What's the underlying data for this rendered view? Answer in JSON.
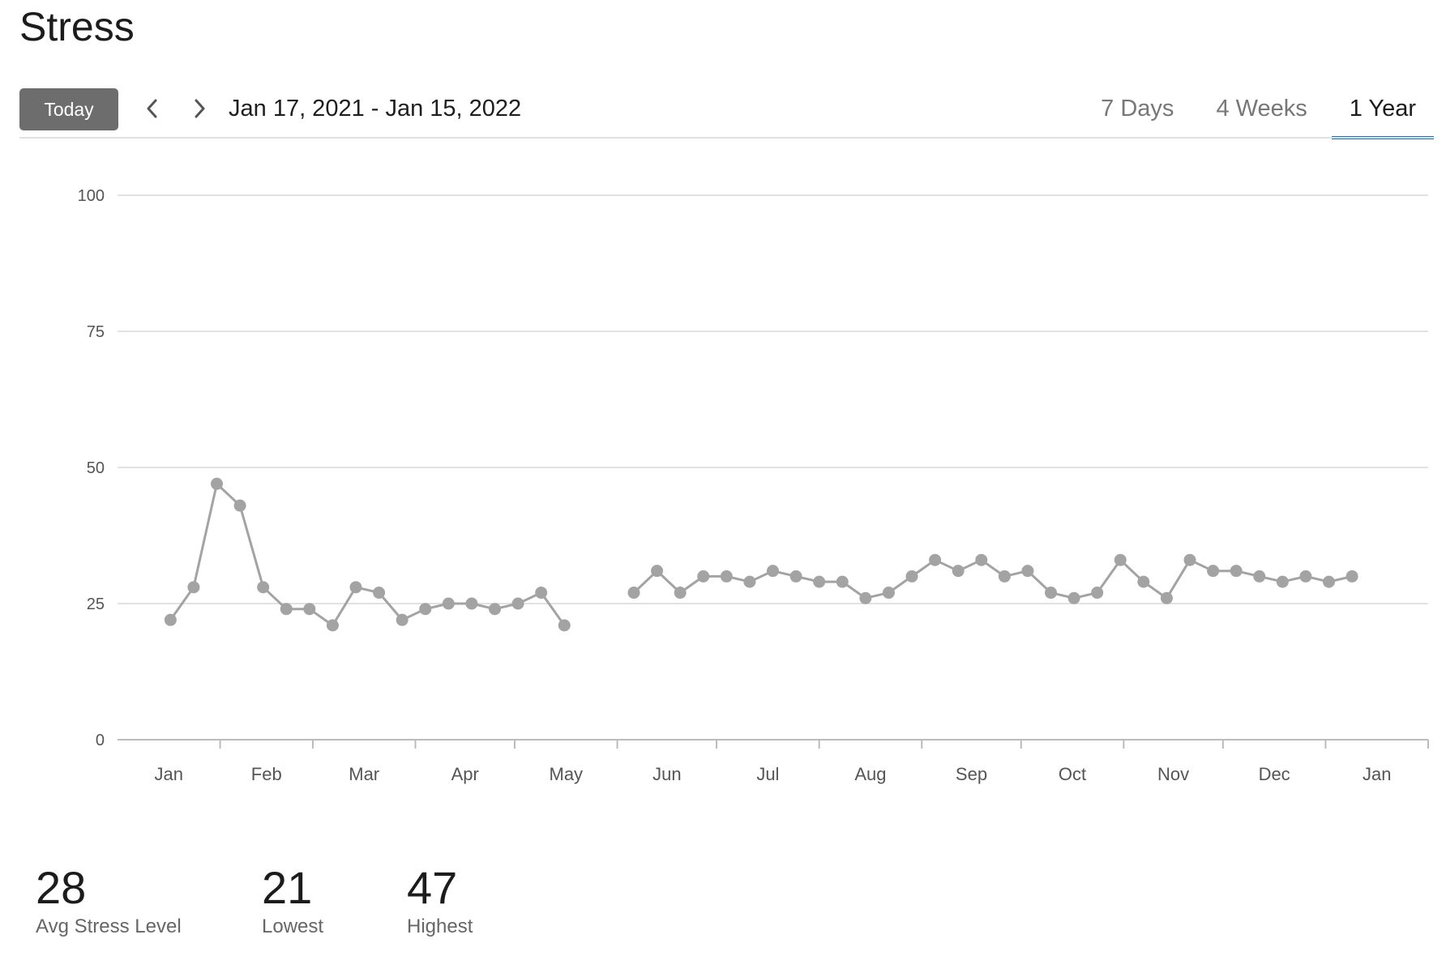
{
  "page": {
    "title": "Stress"
  },
  "toolbar": {
    "today_label": "Today",
    "date_range": "Jan 17, 2021 - Jan 15, 2022",
    "tabs": [
      {
        "label": "7 Days",
        "active": false
      },
      {
        "label": "4 Weeks",
        "active": false
      },
      {
        "label": "1 Year",
        "active": true
      }
    ]
  },
  "colors": {
    "series": "#a3a3a3",
    "grid": "#d9d9d9",
    "accent": "#1a73c6",
    "today_button": "#6d6d6d"
  },
  "chart_data": {
    "type": "line",
    "title": "",
    "xlabel": "",
    "ylabel": "",
    "ylim": [
      0,
      100
    ],
    "y_ticks": [
      0,
      25,
      50,
      75,
      100
    ],
    "x_tick_labels": [
      "Jan",
      "Feb",
      "Mar",
      "Apr",
      "May",
      "Jun",
      "Jul",
      "Aug",
      "Sep",
      "Oct",
      "Nov",
      "Dec",
      "Jan"
    ],
    "grid": true,
    "legend": "none",
    "series": [
      {
        "x": [
          "2021-01-17",
          "2021-01-24",
          "2021-01-31",
          "2021-02-07",
          "2021-02-14",
          "2021-02-21",
          "2021-02-28",
          "2021-03-07",
          "2021-03-14",
          "2021-03-21",
          "2021-03-28",
          "2021-04-04",
          "2021-04-11",
          "2021-04-18",
          "2021-04-25",
          "2021-05-02",
          "2021-05-09",
          "2021-05-16",
          "2021-05-30",
          "2021-06-06",
          "2021-06-13",
          "2021-06-20",
          "2021-06-27",
          "2021-07-04",
          "2021-07-11",
          "2021-07-18",
          "2021-07-25",
          "2021-08-01",
          "2021-08-08",
          "2021-08-15",
          "2021-08-22",
          "2021-08-29",
          "2021-09-05",
          "2021-09-12",
          "2021-09-19",
          "2021-09-26",
          "2021-10-03",
          "2021-10-10",
          "2021-10-17",
          "2021-10-24",
          "2021-10-31",
          "2021-11-07",
          "2021-11-14",
          "2021-11-21",
          "2021-11-28",
          "2021-12-05",
          "2021-12-12",
          "2021-12-19",
          "2021-12-26",
          "2022-01-02",
          "2022-01-09"
        ],
        "values": [
          22,
          28,
          47,
          43,
          28,
          24,
          24,
          21,
          28,
          27,
          22,
          24,
          25,
          25,
          24,
          25,
          27,
          21,
          null,
          27,
          31,
          27,
          30,
          30,
          29,
          31,
          30,
          29,
          29,
          26,
          27,
          30,
          33,
          31,
          33,
          30,
          31,
          27,
          26,
          27,
          33,
          29,
          26,
          33,
          31,
          31,
          30,
          29,
          30,
          29,
          30
        ]
      }
    ]
  },
  "stats": [
    {
      "value": "28",
      "label": "Avg Stress Level"
    },
    {
      "value": "21",
      "label": "Lowest"
    },
    {
      "value": "47",
      "label": "Highest"
    }
  ]
}
